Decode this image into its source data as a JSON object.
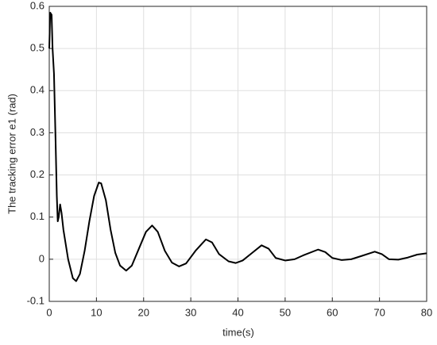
{
  "chart_data": {
    "type": "line",
    "xlabel": "time(s)",
    "ylabel": "The tracking error e1 (rad)",
    "x": [
      0,
      0.2,
      0.5,
      0.7,
      1.0,
      1.3,
      1.6,
      1.8,
      2.0,
      2.3,
      2.6,
      3,
      4,
      5,
      5.7,
      6.5,
      7.5,
      8.5,
      9.5,
      10.5,
      11,
      12,
      13,
      14,
      15,
      16.3,
      17.5,
      19,
      20.5,
      21.8,
      23,
      24.5,
      26,
      27.5,
      29,
      31,
      33.2,
      34.5,
      36,
      38,
      39.5,
      41,
      43,
      45,
      46.5,
      48,
      50,
      52,
      54,
      57,
      58.5,
      60,
      62,
      64,
      66,
      69,
      70.5,
      72,
      74,
      76,
      78,
      80
    ],
    "series": [
      {
        "name": "e1",
        "color": "#000000",
        "values": [
          0.5,
          0.585,
          0.58,
          0.5,
          0.44,
          0.3,
          0.15,
          0.09,
          0.1,
          0.13,
          0.11,
          0.07,
          0.0,
          -0.045,
          -0.052,
          -0.035,
          0.02,
          0.09,
          0.15,
          0.182,
          0.18,
          0.14,
          0.07,
          0.015,
          -0.015,
          -0.027,
          -0.015,
          0.025,
          0.065,
          0.08,
          0.065,
          0.02,
          -0.008,
          -0.017,
          -0.01,
          0.02,
          0.047,
          0.04,
          0.012,
          -0.005,
          -0.009,
          -0.003,
          0.015,
          0.033,
          0.025,
          0.003,
          -0.003,
          0.0,
          0.01,
          0.023,
          0.017,
          0.003,
          -0.002,
          0.0,
          0.007,
          0.018,
          0.012,
          0.0,
          -0.001,
          0.004,
          0.011,
          0.014
        ]
      }
    ],
    "xlim": [
      0,
      80
    ],
    "xticks": [
      0,
      10,
      20,
      30,
      40,
      50,
      60,
      70,
      80
    ],
    "ylim": [
      -0.1,
      0.6
    ],
    "yticks": [
      -0.1,
      0,
      0.1,
      0.2,
      0.3,
      0.4,
      0.5,
      0.6
    ],
    "grid": true
  }
}
